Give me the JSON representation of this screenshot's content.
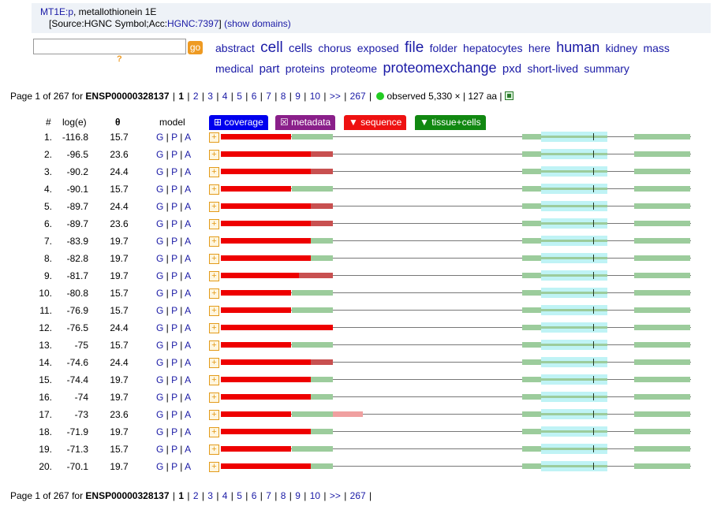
{
  "header": {
    "gene_link": "MT1E:p",
    "gene_desc": ", metallothionein 1E",
    "source_prefix": "[Source:HGNC Symbol;Acc:",
    "source_acc": "HGNC:7397",
    "source_suffix": "]",
    "show_domains": "(show domains)"
  },
  "search": {
    "value": "",
    "go_label": "go",
    "help_label": "?"
  },
  "tag_cloud": [
    {
      "text": "abstract",
      "size": 14
    },
    {
      "text": "cell",
      "size": 19
    },
    {
      "text": "cells",
      "size": 15
    },
    {
      "text": "chorus",
      "size": 14
    },
    {
      "text": "exposed",
      "size": 14
    },
    {
      "text": "file",
      "size": 19
    },
    {
      "text": "folder",
      "size": 14
    },
    {
      "text": "hepatocytes",
      "size": 14
    },
    {
      "text": "here",
      "size": 14
    },
    {
      "text": "human",
      "size": 18
    },
    {
      "text": "kidney",
      "size": 14
    },
    {
      "text": "mass",
      "size": 14
    },
    {
      "text": "medical",
      "size": 14
    },
    {
      "text": "part",
      "size": 15
    },
    {
      "text": "proteins",
      "size": 14
    },
    {
      "text": "proteome",
      "size": 14
    },
    {
      "text": "proteomexchange",
      "size": 18
    },
    {
      "text": "pxd",
      "size": 15
    },
    {
      "text": "short-lived",
      "size": 14
    },
    {
      "text": "summary",
      "size": 14
    }
  ],
  "pager": {
    "prefix": "Page 1 of 267 for",
    "protein": "ENSP00000328137",
    "current": "1",
    "pages": [
      "2",
      "3",
      "4",
      "5",
      "6",
      "7",
      "8",
      "9",
      "10",
      ">>",
      "267"
    ],
    "observed": "observed 5,330 × | 127 aa |"
  },
  "columns": {
    "num": "#",
    "loge": "log(e)",
    "theta": "θ",
    "model": "model"
  },
  "tabs": [
    {
      "label": "⊞ coverage",
      "color": "#0000ee"
    },
    {
      "label": "☒ metadata",
      "color": "#8a1f8a"
    },
    {
      "label": "▼ sequence",
      "color": "#ee1111"
    },
    {
      "label": "▼ tissue+cells",
      "color": "#118811"
    }
  ],
  "colors": {
    "red": "#ee0000",
    "green": "#9ccc9c",
    "cyan": "#bff3f5",
    "line": "#777777"
  },
  "rows": [
    {
      "n": "1.",
      "loge": "-116.8",
      "theta": "15.7",
      "cov": 0.63,
      "extra": null
    },
    {
      "n": "2.",
      "loge": "-96.5",
      "theta": "23.6",
      "cov": 0.8,
      "extra": "dark"
    },
    {
      "n": "3.",
      "loge": "-90.2",
      "theta": "24.4",
      "cov": 0.8,
      "extra": "dark"
    },
    {
      "n": "4.",
      "loge": "-90.1",
      "theta": "15.7",
      "cov": 0.63,
      "extra": null
    },
    {
      "n": "5.",
      "loge": "-89.7",
      "theta": "24.4",
      "cov": 0.8,
      "extra": "dark"
    },
    {
      "n": "6.",
      "loge": "-89.7",
      "theta": "23.6",
      "cov": 0.8,
      "extra": "dark"
    },
    {
      "n": "7.",
      "loge": "-83.9",
      "theta": "19.7",
      "cov": 0.8,
      "extra": null
    },
    {
      "n": "8.",
      "loge": "-82.8",
      "theta": "19.7",
      "cov": 0.8,
      "extra": null
    },
    {
      "n": "9.",
      "loge": "-81.7",
      "theta": "19.7",
      "cov": 0.7,
      "extra": "dark"
    },
    {
      "n": "10.",
      "loge": "-80.8",
      "theta": "15.7",
      "cov": 0.63,
      "extra": null
    },
    {
      "n": "11.",
      "loge": "-76.9",
      "theta": "15.7",
      "cov": 0.63,
      "extra": null
    },
    {
      "n": "12.",
      "loge": "-76.5",
      "theta": "24.4",
      "cov": 1.0,
      "extra": null
    },
    {
      "n": "13.",
      "loge": "-75",
      "theta": "15.7",
      "cov": 0.63,
      "extra": null
    },
    {
      "n": "14.",
      "loge": "-74.6",
      "theta": "24.4",
      "cov": 0.8,
      "extra": "dark"
    },
    {
      "n": "15.",
      "loge": "-74.4",
      "theta": "19.7",
      "cov": 0.8,
      "extra": null
    },
    {
      "n": "16.",
      "loge": "-74",
      "theta": "19.7",
      "cov": 0.8,
      "extra": null
    },
    {
      "n": "17.",
      "loge": "-73",
      "theta": "23.6",
      "cov": 0.63,
      "extra": "pink"
    },
    {
      "n": "18.",
      "loge": "-71.9",
      "theta": "19.7",
      "cov": 0.8,
      "extra": null
    },
    {
      "n": "19.",
      "loge": "-71.3",
      "theta": "15.7",
      "cov": 0.63,
      "extra": null
    },
    {
      "n": "20.",
      "loge": "-70.1",
      "theta": "19.7",
      "cov": 0.8,
      "extra": null
    }
  ],
  "model_links": [
    "G",
    "P",
    "A"
  ]
}
